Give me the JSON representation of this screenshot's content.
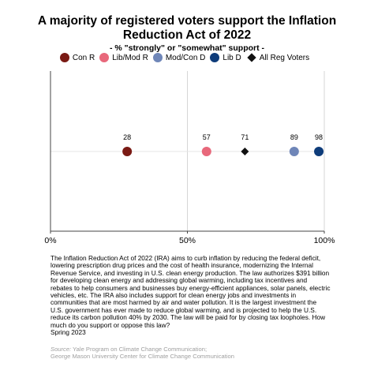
{
  "title_line1": "A majority of registered voters support the Inflation",
  "title_line2": "Reduction Act of 2022",
  "subtitle": "- % \"strongly\" or \"somewhat\" support -",
  "legend": [
    {
      "label": "Con R",
      "color": "#7a1a14",
      "shape": "circle"
    },
    {
      "label": "Lib/Mod R",
      "color": "#e8687b",
      "shape": "circle"
    },
    {
      "label": "Mod/Con D",
      "color": "#6f86b8",
      "shape": "circle"
    },
    {
      "label": "Lib D",
      "color": "#0e3c7a",
      "shape": "circle"
    },
    {
      "label": "All Reg Voters",
      "color": "#111111",
      "shape": "diamond"
    }
  ],
  "chart_data": {
    "type": "scatter",
    "xlim": [
      0,
      100
    ],
    "x_ticks": [
      "0%",
      "50%",
      "100%"
    ],
    "x_tick_values": [
      0,
      50,
      100
    ],
    "grid": true,
    "legend_position": "top",
    "series": [
      {
        "name": "Con R",
        "value": 28,
        "label": "28",
        "color": "#7a1a14",
        "marker": "circle"
      },
      {
        "name": "Lib/Mod R",
        "value": 57,
        "label": "57",
        "color": "#e8687b",
        "marker": "circle"
      },
      {
        "name": "All Reg Voters",
        "value": 71,
        "label": "71",
        "color": "#111111",
        "marker": "diamond"
      },
      {
        "name": "Mod/Con D",
        "value": 89,
        "label": "89",
        "color": "#6f86b8",
        "marker": "circle"
      },
      {
        "name": "Lib D",
        "value": 98,
        "label": "98",
        "color": "#0e3c7a",
        "marker": "circle"
      }
    ]
  },
  "description": "The Inflation Reduction Act of 2022 (IRA) aims to curb inflation by reducing the federal deficit, lowering prescription drug prices and the cost of health insurance, modernizing the Internal Revenue Service, and investing in U.S. clean energy production. The law authorizes $391 billion for developing clean energy and addressing global warming, including tax incentives and rebates to help consumers and businesses buy energy-efficient appliances, solar panels, electric vehicles, etc. The IRA also includes support for clean energy jobs and investments in communities that are most harmed by air and water pollution. It is the largest investment the U.S. government has ever made to reduce global warming, and is projected to help the U.S. reduce its carbon pollution 40% by 2030. The law will be paid for by closing tax loopholes. How much do you support or oppose this law?",
  "date": "Spring 2023",
  "source_label": "Source:",
  "source_line1": "Yale Program on Climate Change Communication;",
  "source_line2": "George Mason University Center for Climate Change Communication"
}
